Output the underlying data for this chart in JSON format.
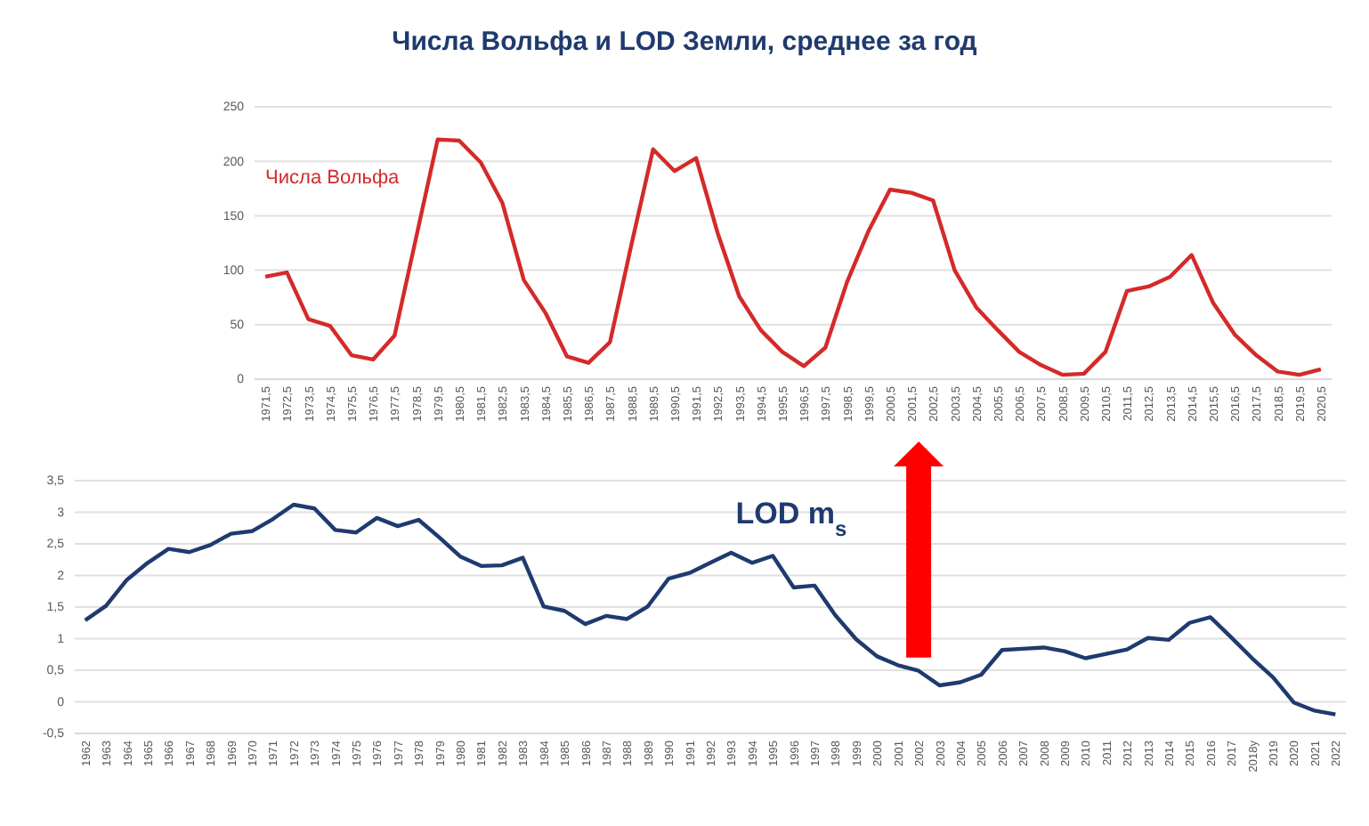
{
  "chart_data": [
    {
      "type": "line",
      "title": "Числа Вольфа и LOD Земли, среднее за год",
      "categories": [
        "1971,5",
        "1972,5",
        "1973,5",
        "1974,5",
        "1975,5",
        "1976,5",
        "1977,5",
        "1978,5",
        "1979,5",
        "1980,5",
        "1981,5",
        "1982,5",
        "1983,5",
        "1984,5",
        "1985,5",
        "1986,5",
        "1987,5",
        "1988,5",
        "1989,5",
        "1990,5",
        "1991,5",
        "1992,5",
        "1993,5",
        "1994,5",
        "1995,5",
        "1996,5",
        "1997,5",
        "1998,5",
        "1999,5",
        "2000,5",
        "2001,5",
        "2002,5",
        "2003,5",
        "2004,5",
        "2005,5",
        "2006,5",
        "2007,5",
        "2008,5",
        "2009,5",
        "2010,5",
        "2011,5",
        "2012,5",
        "2013,5",
        "2014,5",
        "2015,5",
        "2016,5",
        "2017,5",
        "2018,5",
        "2019,5",
        "2020,5"
      ],
      "series": [
        {
          "name": "Числа Вольфа",
          "color": "#d42a2a",
          "values": [
            94,
            98,
            55,
            49,
            22,
            18,
            40,
            130,
            220,
            219,
            199,
            162,
            91,
            61,
            21,
            15,
            34,
            124,
            211,
            191,
            203,
            134,
            76,
            45,
            25,
            12,
            29,
            89,
            136,
            174,
            171,
            164,
            100,
            66,
            45,
            25,
            13,
            4,
            5,
            25,
            81,
            85,
            94,
            114,
            70,
            41,
            22,
            7,
            4,
            9
          ]
        }
      ],
      "ylim": [
        0,
        250
      ],
      "yticks": [
        0,
        50,
        100,
        150,
        200,
        250
      ],
      "grid": "y",
      "marker": "none",
      "line_style": "solid"
    },
    {
      "type": "line",
      "categories": [
        "1962",
        "1963",
        "1964",
        "1965",
        "1966",
        "1967",
        "1968",
        "1969",
        "1970",
        "1971",
        "1972",
        "1973",
        "1974",
        "1975",
        "1976",
        "1977",
        "1978",
        "1979",
        "1980",
        "1981",
        "1982",
        "1983",
        "1984",
        "1985",
        "1986",
        "1987",
        "1988",
        "1989",
        "1990",
        "1991",
        "1992",
        "1993",
        "1994",
        "1995",
        "1996",
        "1997",
        "1998",
        "1999",
        "2000",
        "2001",
        "2002",
        "2003",
        "2004",
        "2005",
        "2006",
        "2007",
        "2008",
        "2009",
        "2010",
        "2011",
        "2012",
        "2013",
        "2014",
        "2015",
        "2016",
        "2017",
        "2018у",
        "2019",
        "2020",
        "2021",
        "2022"
      ],
      "series": [
        {
          "name": "LOD m$_{s}$",
          "color": "#1f3a6e",
          "values": [
            1.29,
            1.52,
            1.93,
            2.2,
            2.42,
            2.37,
            2.48,
            2.66,
            2.7,
            2.89,
            3.12,
            3.06,
            2.72,
            2.68,
            2.91,
            2.78,
            2.88,
            2.6,
            2.3,
            2.15,
            2.16,
            2.28,
            1.51,
            1.44,
            1.23,
            1.36,
            1.31,
            1.51,
            1.95,
            2.04,
            2.2,
            2.36,
            2.2,
            2.31,
            1.81,
            1.84,
            1.37,
            0.99,
            0.72,
            0.58,
            0.49,
            0.26,
            0.31,
            0.43,
            0.82,
            0.84,
            0.86,
            0.8,
            0.69,
            0.76,
            0.83,
            1.01,
            0.98,
            1.25,
            1.34,
            1.02,
            0.69,
            0.39,
            -0.01,
            -0.14,
            -0.2
          ]
        }
      ],
      "ylim": [
        -0.5,
        3.5
      ],
      "yticks": [
        {
          "value": -0.5,
          "label": "-0,5"
        },
        0,
        {
          "value": 0.5,
          "label": "0,5"
        },
        1,
        {
          "value": 1.5,
          "label": "1,5"
        },
        2,
        {
          "value": 2.5,
          "label": "2,5"
        },
        3,
        {
          "value": 3.5,
          "label": "3,5"
        }
      ],
      "grid": "y",
      "marker": "none",
      "line_style": "solid"
    }
  ]
}
